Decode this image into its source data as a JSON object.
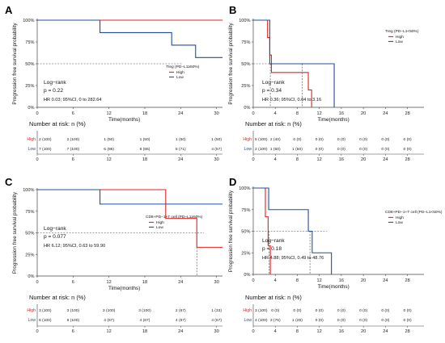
{
  "colors": {
    "high": "#e8201f",
    "low": "#1f4e9c",
    "axis": "#444444",
    "guide": "#444444"
  },
  "chart_data": [
    {
      "panel": "A",
      "type": "line",
      "xlabel": "Time(months)",
      "ylabel": "Progression free survival probability",
      "xlim": [
        0,
        31
      ],
      "ylim": [
        0,
        1
      ],
      "x_ticks": [
        "0",
        "6",
        "12",
        "18",
        "24",
        "30"
      ],
      "y_ticks": [
        "0%",
        "25%",
        "50%",
        "75%",
        "100%"
      ],
      "legend_title": "Treg (PD−L1≥50%)",
      "legend_position": "right",
      "series": [
        {
          "name": "High",
          "color": "#e8201f",
          "steps": [
            [
              0,
              1.0
            ],
            [
              31,
              1.0
            ]
          ]
        },
        {
          "name": "Low",
          "color": "#1f4e9c",
          "steps": [
            [
              0,
              1.0
            ],
            [
              10.5,
              0.857
            ],
            [
              22.5,
              0.714
            ],
            [
              26.5,
              0.571
            ],
            [
              31,
              0.571
            ]
          ]
        }
      ],
      "median_lines": [],
      "annotations": [
        "Log−rank",
        "p = 0.22",
        "HR 0.03; 95%CI, 0 to 282.64"
      ],
      "risk_table": {
        "title": "Number at risk: n (%)",
        "x_ticks": [
          "0",
          "6",
          "12",
          "18",
          "24",
          "30"
        ],
        "rows": [
          {
            "label": "High",
            "values": [
              "2 (100)",
              "2 (100)",
              "1 (50)",
              "1 (50)",
              "1 (50)",
              "1 (50)"
            ]
          },
          {
            "label": "Low",
            "values": [
              "7 (100)",
              "7 (100)",
              "6 (86)",
              "6 (86)",
              "5 (71)",
              "4 (57)"
            ]
          }
        ]
      }
    },
    {
      "panel": "B",
      "type": "line",
      "xlabel": "Time(months)",
      "ylabel": "Progression free survival probability",
      "xlim": [
        0,
        31
      ],
      "ylim": [
        0,
        1
      ],
      "x_ticks": [
        "0",
        "4",
        "8",
        "12",
        "16",
        "20",
        "24",
        "28"
      ],
      "y_ticks": [
        "0%",
        "25%",
        "50%",
        "75%",
        "100%"
      ],
      "legend_title": "Treg (PD−L1<50%)",
      "legend_position": "top-right",
      "series": [
        {
          "name": "High",
          "color": "#e8201f",
          "steps": [
            [
              0,
              1.0
            ],
            [
              2.6,
              0.8
            ],
            [
              3.0,
              0.6
            ],
            [
              3.3,
              0.4
            ],
            [
              10.0,
              0.2
            ],
            [
              10.6,
              0.0
            ]
          ]
        },
        {
          "name": "Low",
          "color": "#1f4e9c",
          "steps": [
            [
              0,
              1.0
            ],
            [
              3.0,
              0.5
            ],
            [
              14.7,
              0.0
            ]
          ]
        }
      ],
      "median_lines": [
        3.1,
        8.9
      ],
      "annotations": [
        "Log−rank",
        "p = 0.34",
        "HR 0.36; 95%CI, 0.04 to 3.16"
      ],
      "risk_table": {
        "title": "Number at risk: n (%)",
        "x_ticks": [
          "0",
          "4",
          "8",
          "12",
          "16",
          "20",
          "24",
          "28"
        ],
        "rows": [
          {
            "label": "High",
            "values": [
              "5 (100)",
              "2 (40)",
              "0 (0)",
              "0 (0)",
              "0 (0)",
              "0 (0)",
              "0 (0)",
              "0 (0)"
            ]
          },
          {
            "label": "Low",
            "values": [
              "2 (100)",
              "1 (50)",
              "1 (50)",
              "0 (0)",
              "0 (0)",
              "0 (0)",
              "0 (0)",
              "0 (0)"
            ]
          }
        ]
      }
    },
    {
      "panel": "C",
      "type": "line",
      "xlabel": "Time(months)",
      "ylabel": "Progression free survival probability",
      "xlim": [
        0,
        31
      ],
      "ylim": [
        0,
        1
      ],
      "x_ticks": [
        "0",
        "6",
        "12",
        "18",
        "24",
        "30"
      ],
      "y_ticks": [
        "0%",
        "25%",
        "50%",
        "75%",
        "100%"
      ],
      "legend_title": "CD8+PD−1+T cell (PD−L1≥50%)",
      "legend_position": "right",
      "series": [
        {
          "name": "High",
          "color": "#e8201f",
          "steps": [
            [
              0,
              1.0
            ],
            [
              21.5,
              0.667
            ],
            [
              26.7,
              0.333
            ],
            [
              31,
              0.333
            ]
          ]
        },
        {
          "name": "Low",
          "color": "#1f4e9c",
          "steps": [
            [
              0,
              1.0
            ],
            [
              10.5,
              0.833
            ],
            [
              31,
              0.833
            ]
          ]
        }
      ],
      "median_lines": [
        26.7
      ],
      "annotations": [
        "Log−rank",
        "p = 0.077",
        "HR 6.12; 95%CI, 0.63 to 59.90"
      ],
      "risk_table": {
        "title": "Number at risk: n (%)",
        "x_ticks": [
          "0",
          "6",
          "12",
          "18",
          "24",
          "30"
        ],
        "rows": [
          {
            "label": "High",
            "values": [
              "3 (100)",
              "3 (100)",
              "3 (100)",
              "3 (100)",
              "2 (67)",
              "1 (33)"
            ]
          },
          {
            "label": "Low",
            "values": [
              "6 (100)",
              "6 (100)",
              "4 (67)",
              "4 (67)",
              "4 (67)",
              "4 (67)"
            ]
          }
        ]
      }
    },
    {
      "panel": "D",
      "type": "line",
      "xlabel": "Time(months)",
      "ylabel": "Progression free survival probability",
      "xlim": [
        0,
        31
      ],
      "ylim": [
        0,
        1
      ],
      "x_ticks": [
        "0",
        "4",
        "8",
        "12",
        "16",
        "20",
        "24",
        "28"
      ],
      "y_ticks": [
        "0%",
        "25%",
        "50%",
        "75%",
        "100%"
      ],
      "legend_title": "CD8+PD−1+T cell (PD−L1<50%)",
      "legend_position": "top-right",
      "series": [
        {
          "name": "High",
          "color": "#e8201f",
          "steps": [
            [
              0,
              1.0
            ],
            [
              2.2,
              0.667
            ],
            [
              2.7,
              0.333
            ],
            [
              3.1,
              0.0
            ]
          ]
        },
        {
          "name": "Low",
          "color": "#1f4e9c",
          "steps": [
            [
              0,
              1.0
            ],
            [
              2.8,
              0.75
            ],
            [
              10.0,
              0.5
            ],
            [
              10.7,
              0.25
            ],
            [
              14.2,
              0.0
            ]
          ]
        }
      ],
      "median_lines": [
        2.9,
        10.3
      ],
      "annotations": [
        "Log−rank",
        "p = 0.18",
        "HR 4.88; 95%CI, 0.49 to 48.76"
      ],
      "risk_table": {
        "title": "Number at risk: n (%)",
        "x_ticks": [
          "0",
          "4",
          "8",
          "12",
          "16",
          "20",
          "24",
          "28"
        ],
        "rows": [
          {
            "label": "High",
            "values": [
              "3 (100)",
              "0 (0)",
              "0 (0)",
              "0 (0)",
              "0 (0)",
              "0 (0)",
              "0 (0)",
              "0 (0)"
            ]
          },
          {
            "label": "Low",
            "values": [
              "4 (100)",
              "3 (75)",
              "1 (25)",
              "0 (0)",
              "0 (0)",
              "0 (0)",
              "0 (0)",
              "0 (0)"
            ]
          }
        ]
      }
    }
  ]
}
